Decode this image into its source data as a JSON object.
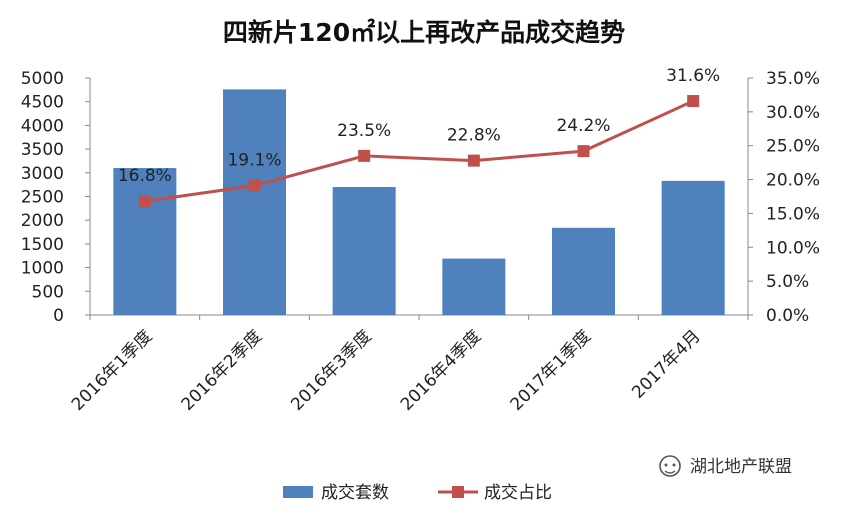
{
  "chart_data": {
    "type": "bar",
    "title": "四新片120㎡以上再改产品成交趋势",
    "categories": [
      "2016年1季度",
      "2016年2季度",
      "2016年3季度",
      "2016年4季度",
      "2017年1季度",
      "2017年4月"
    ],
    "series": [
      {
        "name": "成交套数",
        "type": "bar",
        "axis": "left",
        "color": "#4F81BD",
        "values": [
          3100,
          4760,
          2700,
          1190,
          1840,
          2830
        ]
      },
      {
        "name": "成交占比",
        "type": "line",
        "axis": "right",
        "color": "#C0504D",
        "values": [
          16.8,
          19.1,
          23.5,
          22.8,
          24.2,
          31.6
        ],
        "labels": [
          "16.8%",
          "19.1%",
          "23.5%",
          "22.8%",
          "24.2%",
          "31.6%"
        ]
      }
    ],
    "y_left": {
      "ylim": [
        0,
        5000
      ],
      "ticks": [
        "0",
        "500",
        "1000",
        "1500",
        "2000",
        "2500",
        "3000",
        "3500",
        "4000",
        "4500",
        "5000"
      ]
    },
    "y_right": {
      "ylim": [
        0,
        35
      ],
      "ticks": [
        "0.0%",
        "5.0%",
        "10.0%",
        "15.0%",
        "20.0%",
        "25.0%",
        "30.0%",
        "35.0%"
      ]
    },
    "grid": false,
    "legend": "bottom"
  },
  "watermark": {
    "text": "湖北地产联盟",
    "icon": "wechat-icon"
  }
}
